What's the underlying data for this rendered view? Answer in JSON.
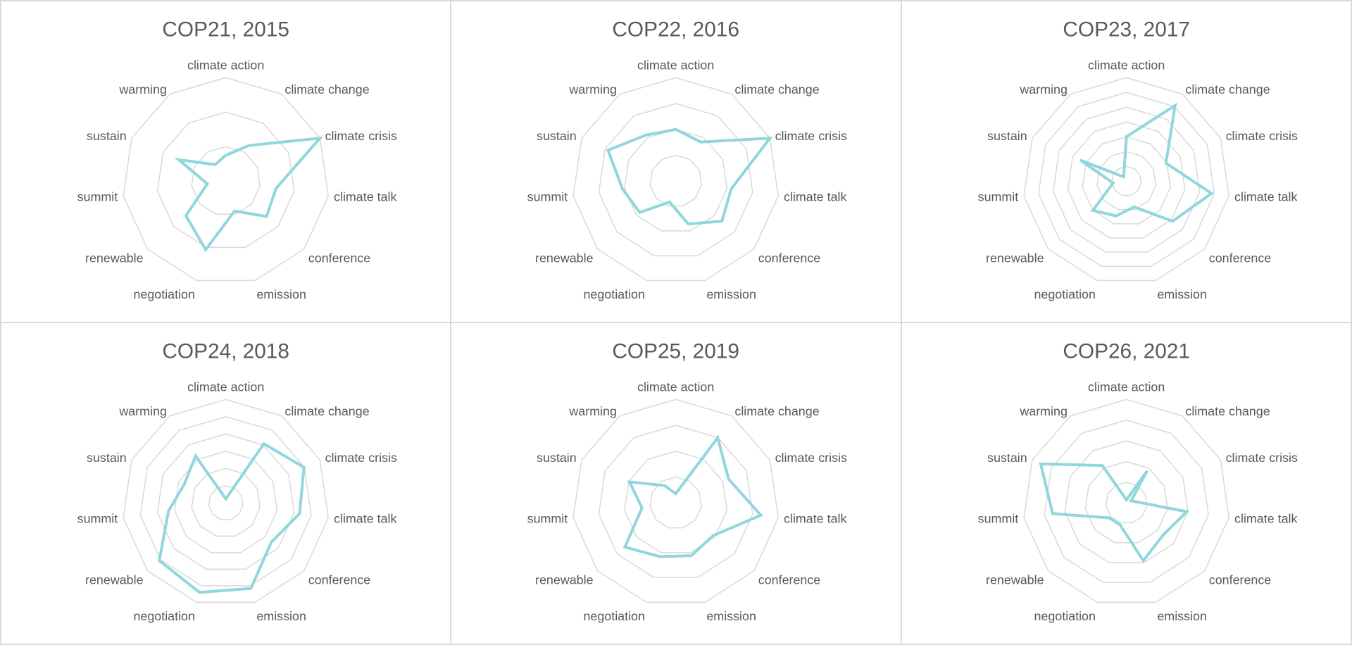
{
  "chart_data": [
    {
      "type": "radar",
      "title": "COP21, 2015",
      "grid_rings": 3,
      "categories": [
        "climate action",
        "climate change",
        "climate crisis",
        "climate talk",
        "conference",
        "emission",
        "negotiation",
        "renewable",
        "summit",
        "sustain",
        "warming"
      ],
      "values": [
        0.25,
        0.41,
        1.0,
        0.49,
        0.52,
        0.3,
        0.69,
        0.51,
        0.18,
        0.5,
        0.19
      ]
    },
    {
      "type": "radar",
      "title": "COP22, 2016",
      "grid_rings": 4,
      "categories": [
        "climate action",
        "climate change",
        "climate crisis",
        "climate talk",
        "conference",
        "emission",
        "negotiation",
        "renewable",
        "summit",
        "sustain",
        "warming"
      ],
      "values": [
        0.5,
        0.45,
        1.0,
        0.54,
        0.59,
        0.43,
        0.21,
        0.46,
        0.52,
        0.72,
        0.53
      ]
    },
    {
      "type": "radar",
      "title": "COP23, 2017",
      "grid_rings": 7,
      "categories": [
        "climate action",
        "climate change",
        "climate crisis",
        "climate talk",
        "conference",
        "emission",
        "negotiation",
        "renewable",
        "summit",
        "sustain",
        "warming"
      ],
      "values": [
        0.43,
        0.87,
        0.42,
        0.83,
        0.59,
        0.26,
        0.35,
        0.43,
        0.13,
        0.49,
        0.05
      ]
    },
    {
      "type": "radar",
      "title": "COP24, 2018",
      "grid_rings": 6,
      "categories": [
        "climate action",
        "climate change",
        "climate crisis",
        "climate talk",
        "conference",
        "emission",
        "negotiation",
        "renewable",
        "summit",
        "sustain",
        "warming"
      ],
      "values": [
        0.04,
        0.68,
        0.83,
        0.72,
        0.58,
        0.86,
        0.9,
        0.85,
        0.56,
        0.44,
        0.54
      ]
    },
    {
      "type": "radar",
      "title": "COP25, 2019",
      "grid_rings": 4,
      "categories": [
        "climate action",
        "climate change",
        "climate crisis",
        "climate talk",
        "conference",
        "emission",
        "negotiation",
        "renewable",
        "summit",
        "sustain",
        "warming"
      ],
      "values": [
        0.09,
        0.75,
        0.56,
        0.83,
        0.48,
        0.53,
        0.54,
        0.65,
        0.33,
        0.49,
        0.2
      ]
    },
    {
      "type": "radar",
      "title": "COP26, 2021",
      "grid_rings": 5,
      "categories": [
        "climate action",
        "climate change",
        "climate crisis",
        "climate talk",
        "conference",
        "emission",
        "negotiation",
        "renewable",
        "summit",
        "sustain",
        "warming"
      ],
      "values": [
        0.03,
        0.37,
        0.05,
        0.59,
        0.47,
        0.58,
        0.22,
        0.22,
        0.72,
        0.91,
        0.43
      ]
    }
  ],
  "colors": {
    "series": "#8fd6dd",
    "grid": "#d9d9d9",
    "text": "#595959",
    "border": "#d9d9d9"
  }
}
